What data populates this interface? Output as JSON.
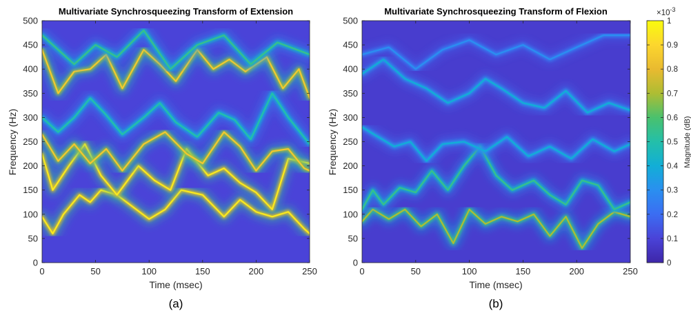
{
  "panels": [
    {
      "caption": "(a)",
      "title": "Multivariate Synchrosqueezing Transform of Extension",
      "xlabel": "Time (msec)",
      "ylabel": "Frequency (Hz)",
      "xticks": [
        "0",
        "50",
        "100",
        "150",
        "200",
        "250"
      ],
      "yticks": [
        "0",
        "50",
        "100",
        "150",
        "200",
        "250",
        "300",
        "350",
        "400",
        "450",
        "500"
      ]
    },
    {
      "caption": "(b)",
      "title": "Multivariate Synchrosqueezing Transform of Flexion",
      "xlabel": "Time (msec)",
      "ylabel": "Frequency (Hz)",
      "xticks": [
        "0",
        "50",
        "100",
        "150",
        "200",
        "250"
      ],
      "yticks": [
        "0",
        "50",
        "100",
        "150",
        "200",
        "250",
        "300",
        "350",
        "400",
        "450",
        "500"
      ]
    }
  ],
  "colorbar": {
    "label": "Magnitude (dB)",
    "multiplier_base": "×10",
    "multiplier_exp": "-3",
    "ticks": [
      "0",
      "0.1",
      "0.2",
      "0.3",
      "0.4",
      "0.5",
      "0.6",
      "0.7",
      "0.8",
      "0.9",
      "1"
    ],
    "colormap": [
      "#3e26a8",
      "#4a43d8",
      "#3b6df2",
      "#2a8ff0",
      "#12aed6",
      "#24bfa9",
      "#4ac16d",
      "#aebd33",
      "#e9ba30",
      "#fcd62e",
      "#f9fb0e"
    ]
  },
  "chart_data": [
    {
      "type": "heatmap",
      "title": "Multivariate Synchrosqueezing Transform of Extension",
      "xlabel": "Time (msec)",
      "ylabel": "Frequency (Hz)",
      "xlim": [
        0,
        250
      ],
      "ylim": [
        0,
        500
      ],
      "clim": [
        0,
        0.001
      ],
      "background_level": 0.0001,
      "ridges": [
        {
          "t": [
            0,
            10,
            20,
            35,
            45,
            55,
            70,
            85,
            100,
            115,
            130,
            150,
            170,
            185,
            200,
            215,
            230,
            245,
            250
          ],
          "f": [
            95,
            60,
            100,
            140,
            125,
            150,
            140,
            115,
            90,
            110,
            150,
            140,
            95,
            130,
            105,
            95,
            105,
            70,
            60
          ],
          "level": 0.00095
        },
        {
          "t": [
            0,
            10,
            25,
            40,
            55,
            70,
            90,
            105,
            120,
            135,
            155,
            170,
            185,
            200,
            215,
            230,
            250
          ],
          "f": [
            225,
            150,
            200,
            245,
            180,
            140,
            200,
            170,
            150,
            235,
            180,
            195,
            165,
            145,
            110,
            215,
            205
          ],
          "level": 0.00095
        },
        {
          "t": [
            0,
            15,
            30,
            45,
            60,
            75,
            95,
            115,
            135,
            150,
            170,
            185,
            200,
            215,
            230,
            245,
            250
          ],
          "f": [
            265,
            210,
            245,
            205,
            235,
            190,
            245,
            270,
            225,
            205,
            270,
            240,
            190,
            230,
            235,
            195,
            190
          ],
          "level": 0.00085
        },
        {
          "t": [
            0,
            15,
            30,
            45,
            60,
            75,
            95,
            110,
            125,
            145,
            165,
            180,
            195,
            215,
            230,
            250
          ],
          "f": [
            300,
            270,
            300,
            340,
            305,
            265,
            300,
            330,
            290,
            260,
            310,
            295,
            255,
            350,
            300,
            245
          ],
          "level": 0.0005
        },
        {
          "t": [
            0,
            15,
            30,
            45,
            60,
            75,
            95,
            110,
            125,
            145,
            160,
            175,
            190,
            210,
            225,
            240,
            250
          ],
          "f": [
            440,
            350,
            395,
            400,
            430,
            360,
            440,
            410,
            375,
            440,
            400,
            420,
            395,
            425,
            360,
            400,
            340
          ],
          "level": 0.00085
        },
        {
          "t": [
            0,
            15,
            30,
            50,
            70,
            95,
            120,
            145,
            170,
            195,
            220,
            250
          ],
          "f": [
            470,
            440,
            410,
            450,
            425,
            480,
            400,
            450,
            470,
            410,
            455,
            430
          ],
          "level": 0.00055
        }
      ]
    },
    {
      "type": "heatmap",
      "title": "Multivariate Synchrosqueezing Transform of Flexion",
      "xlabel": "Time (msec)",
      "ylabel": "Frequency (Hz)",
      "xlim": [
        0,
        250
      ],
      "ylim": [
        0,
        500
      ],
      "clim": [
        0,
        0.001
      ],
      "background_level": 8e-05,
      "ridges": [
        {
          "t": [
            0,
            10,
            25,
            40,
            55,
            70,
            85,
            100,
            115,
            130,
            145,
            160,
            175,
            190,
            205,
            220,
            235,
            250
          ],
          "f": [
            85,
            110,
            90,
            110,
            75,
            100,
            40,
            110,
            80,
            95,
            85,
            100,
            55,
            95,
            30,
            80,
            105,
            95
          ],
          "level": 0.0007
        },
        {
          "t": [
            0,
            10,
            20,
            35,
            50,
            65,
            80,
            95,
            110,
            125,
            140,
            160,
            175,
            190,
            205,
            220,
            235,
            250
          ],
          "f": [
            110,
            150,
            120,
            155,
            145,
            190,
            150,
            200,
            240,
            180,
            150,
            170,
            140,
            120,
            170,
            160,
            110,
            125
          ],
          "level": 0.00055
        },
        {
          "t": [
            0,
            15,
            30,
            45,
            60,
            75,
            95,
            115,
            135,
            155,
            175,
            195,
            215,
            235,
            250
          ],
          "f": [
            280,
            260,
            240,
            250,
            210,
            245,
            250,
            230,
            260,
            220,
            240,
            215,
            255,
            230,
            245
          ],
          "level": 0.0004
        },
        {
          "t": [
            0,
            20,
            40,
            60,
            80,
            100,
            115,
            130,
            150,
            170,
            190,
            210,
            230,
            250
          ],
          "f": [
            390,
            420,
            380,
            360,
            330,
            350,
            380,
            360,
            330,
            320,
            355,
            310,
            330,
            315
          ],
          "level": 0.0004
        },
        {
          "t": [
            0,
            25,
            50,
            75,
            100,
            125,
            150,
            175,
            200,
            225,
            250
          ],
          "f": [
            430,
            445,
            400,
            440,
            460,
            430,
            450,
            420,
            445,
            470,
            470
          ],
          "level": 0.0003
        }
      ]
    }
  ]
}
